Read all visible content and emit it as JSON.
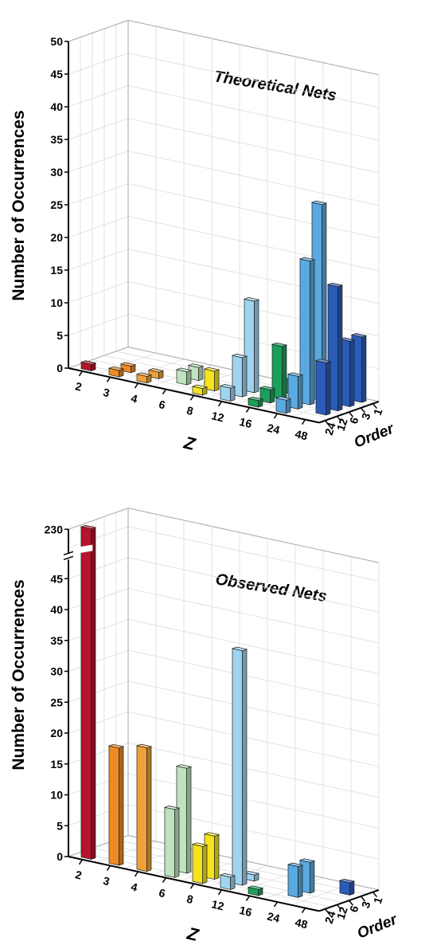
{
  "colors": {
    "z2": "#b5142a",
    "z3": "#f08a24",
    "z4": "#f0a238",
    "z6": "#bfe3bf",
    "z8": "#f3e41d",
    "z12": "#9fd4f0",
    "z16": "#19a05a",
    "z24": "#5aa9e0",
    "z48": "#2a5cb8",
    "order24": "#bfe3bf",
    "order12": "#9fd4f0",
    "order6": "#5aa9e0",
    "order3": "#2a5cb8",
    "order1": "#2255b0"
  },
  "axis_labels": {
    "y": "Number of Occurrences",
    "z": "Z",
    "order": "Order"
  },
  "chart_data": [
    {
      "type": "bar",
      "title": "Theoretical Nets",
      "ylabel": "Number of Occurrences",
      "xlabel": "Z",
      "zlabel": "Order",
      "x_categories": [
        "2",
        "3",
        "4",
        "6",
        "8",
        "12",
        "16",
        "24",
        "48"
      ],
      "z_categories": [
        "24",
        "12",
        "6",
        "3",
        "1"
      ],
      "ylim": [
        0,
        50
      ],
      "yticks": [
        "0",
        "5",
        "10",
        "15",
        "20",
        "25",
        "30",
        "35",
        "40",
        "45",
        "50"
      ],
      "grid": true,
      "bars": [
        {
          "z": "2",
          "order": "24",
          "value": 1
        },
        {
          "z": "3",
          "order": "24",
          "value": 1
        },
        {
          "z": "3",
          "order": "12",
          "value": 1
        },
        {
          "z": "4",
          "order": "24",
          "value": 1
        },
        {
          "z": "4",
          "order": "12",
          "value": 1
        },
        {
          "z": "6",
          "order": "12",
          "value": 2
        },
        {
          "z": "6",
          "order": "6",
          "value": 2
        },
        {
          "z": "8",
          "order": "12",
          "value": 1
        },
        {
          "z": "8",
          "order": "24",
          "value": 1
        },
        {
          "z": "8",
          "order": "12",
          "value": 3
        },
        {
          "z": "12",
          "order": "24",
          "value": 2
        },
        {
          "z": "12",
          "order": "12",
          "value": 6
        },
        {
          "z": "12",
          "order": "6",
          "value": 14
        },
        {
          "z": "16",
          "order": "24",
          "value": 1
        },
        {
          "z": "16",
          "order": "12",
          "value": 2
        },
        {
          "z": "16",
          "order": "6",
          "value": 8
        },
        {
          "z": "16",
          "order": "3",
          "value": 2
        },
        {
          "z": "24",
          "order": "24",
          "value": 2
        },
        {
          "z": "24",
          "order": "12",
          "value": 5
        },
        {
          "z": "24",
          "order": "6",
          "value": 22
        },
        {
          "z": "24",
          "order": "3",
          "value": 30
        },
        {
          "z": "48",
          "order": "12",
          "value": 8
        },
        {
          "z": "48",
          "order": "6",
          "value": 19
        },
        {
          "z": "48",
          "order": "3",
          "value": 10
        },
        {
          "z": "48",
          "order": "1",
          "value": 10
        }
      ]
    },
    {
      "type": "bar",
      "title": "Observed Nets",
      "ylabel": "Number of Occurrences",
      "xlabel": "Z",
      "zlabel": "Order",
      "x_categories": [
        "2",
        "3",
        "4",
        "6",
        "8",
        "12",
        "16",
        "24",
        "48"
      ],
      "z_categories": [
        "24",
        "12",
        "6",
        "3",
        "1"
      ],
      "ylim": [
        0,
        47
      ],
      "axis_break": {
        "top_label": "230"
      },
      "yticks": [
        "0",
        "5",
        "10",
        "15",
        "20",
        "25",
        "30",
        "35",
        "40",
        "45",
        "230"
      ],
      "grid": true,
      "bars": [
        {
          "z": "2",
          "order": "24",
          "value": 230
        },
        {
          "z": "3",
          "order": "24",
          "value": 19
        },
        {
          "z": "4",
          "order": "24",
          "value": 20
        },
        {
          "z": "6",
          "order": "24",
          "value": 11
        },
        {
          "z": "6",
          "order": "12",
          "value": 17
        },
        {
          "z": "8",
          "order": "24",
          "value": 6
        },
        {
          "z": "8",
          "order": "12",
          "value": 7
        },
        {
          "z": "12",
          "order": "12",
          "value": 38
        },
        {
          "z": "12",
          "order": "24",
          "value": 2
        },
        {
          "z": "12",
          "order": "6",
          "value": 1
        },
        {
          "z": "16",
          "order": "24",
          "value": 1
        },
        {
          "z": "24",
          "order": "12",
          "value": 5
        },
        {
          "z": "24",
          "order": "6",
          "value": 5
        },
        {
          "z": "48",
          "order": "3",
          "value": 2
        }
      ]
    }
  ]
}
